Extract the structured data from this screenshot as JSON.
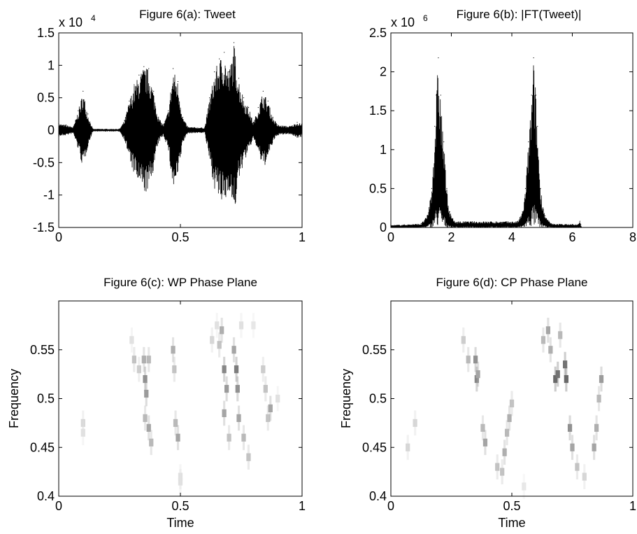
{
  "figure": {
    "background": "#ffffff",
    "ink": "#000000"
  },
  "chart_data": [
    {
      "id": "a",
      "type": "line",
      "title": "Figure 6(a): Tweet",
      "xlabel": "",
      "ylabel": "",
      "xlim": [
        0,
        1
      ],
      "ylim": [
        -1.5,
        1.5
      ],
      "y_multiplier": "x 10",
      "y_exponent": "4",
      "xticks": [
        "0",
        "0.5",
        "1"
      ],
      "yticks": [
        "1.5",
        "1",
        "0.5",
        "0",
        "-0.5",
        "-1",
        "-1.5"
      ],
      "grid": false,
      "envelope": [
        {
          "x": 0.0,
          "y": 0.1
        },
        {
          "x": 0.03,
          "y": 0.08
        },
        {
          "x": 0.06,
          "y": 0.05
        },
        {
          "x": 0.08,
          "y": 0.3
        },
        {
          "x": 0.1,
          "y": 0.6
        },
        {
          "x": 0.12,
          "y": 0.25
        },
        {
          "x": 0.14,
          "y": 0.02
        },
        {
          "x": 0.25,
          "y": 0.02
        },
        {
          "x": 0.27,
          "y": 0.15
        },
        {
          "x": 0.29,
          "y": 0.45
        },
        {
          "x": 0.31,
          "y": 0.7
        },
        {
          "x": 0.33,
          "y": 0.85
        },
        {
          "x": 0.35,
          "y": 0.98
        },
        {
          "x": 0.37,
          "y": 0.95
        },
        {
          "x": 0.39,
          "y": 0.6
        },
        {
          "x": 0.41,
          "y": 0.2
        },
        {
          "x": 0.43,
          "y": 0.08
        },
        {
          "x": 0.45,
          "y": 0.3
        },
        {
          "x": 0.47,
          "y": 0.95
        },
        {
          "x": 0.49,
          "y": 0.75
        },
        {
          "x": 0.51,
          "y": 0.2
        },
        {
          "x": 0.53,
          "y": 0.05
        },
        {
          "x": 0.6,
          "y": 0.04
        },
        {
          "x": 0.62,
          "y": 0.5
        },
        {
          "x": 0.64,
          "y": 0.9
        },
        {
          "x": 0.66,
          "y": 1.1
        },
        {
          "x": 0.68,
          "y": 1.2
        },
        {
          "x": 0.7,
          "y": 0.9
        },
        {
          "x": 0.72,
          "y": 1.35
        },
        {
          "x": 0.74,
          "y": 0.8
        },
        {
          "x": 0.76,
          "y": 0.5
        },
        {
          "x": 0.78,
          "y": 0.35
        },
        {
          "x": 0.8,
          "y": 0.12
        },
        {
          "x": 0.82,
          "y": 0.35
        },
        {
          "x": 0.84,
          "y": 0.6
        },
        {
          "x": 0.86,
          "y": 0.45
        },
        {
          "x": 0.88,
          "y": 0.2
        },
        {
          "x": 0.9,
          "y": 0.08
        },
        {
          "x": 0.95,
          "y": 0.06
        },
        {
          "x": 0.98,
          "y": 0.12
        },
        {
          "x": 1.0,
          "y": 0.1
        }
      ]
    },
    {
      "id": "b",
      "type": "line",
      "title": "Figure 6(b): |FT(Tweet)|",
      "xlabel": "",
      "ylabel": "",
      "xlim": [
        0,
        8
      ],
      "ylim": [
        0,
        2.5
      ],
      "y_multiplier": "x 10",
      "y_exponent": "6",
      "xticks": [
        "0",
        "2",
        "4",
        "6",
        "8"
      ],
      "yticks": [
        "2.5",
        "2",
        "1.5",
        "1",
        "0.5",
        "0"
      ],
      "grid": false,
      "envelope": [
        {
          "x": 0.0,
          "y": 0.03
        },
        {
          "x": 1.0,
          "y": 0.05
        },
        {
          "x": 1.2,
          "y": 0.15
        },
        {
          "x": 1.35,
          "y": 0.5
        },
        {
          "x": 1.45,
          "y": 1.3
        },
        {
          "x": 1.5,
          "y": 1.7
        },
        {
          "x": 1.57,
          "y": 2.18
        },
        {
          "x": 1.65,
          "y": 1.7
        },
        {
          "x": 1.75,
          "y": 1.1
        },
        {
          "x": 1.85,
          "y": 0.5
        },
        {
          "x": 1.95,
          "y": 0.2
        },
        {
          "x": 2.1,
          "y": 0.08
        },
        {
          "x": 4.2,
          "y": 0.08
        },
        {
          "x": 4.35,
          "y": 0.2
        },
        {
          "x": 4.45,
          "y": 0.5
        },
        {
          "x": 4.55,
          "y": 1.1
        },
        {
          "x": 4.65,
          "y": 1.7
        },
        {
          "x": 4.72,
          "y": 2.18
        },
        {
          "x": 4.8,
          "y": 1.7
        },
        {
          "x": 4.85,
          "y": 1.3
        },
        {
          "x": 4.95,
          "y": 0.5
        },
        {
          "x": 5.1,
          "y": 0.15
        },
        {
          "x": 5.3,
          "y": 0.05
        },
        {
          "x": 6.2,
          "y": 0.04
        },
        {
          "x": 6.25,
          "y": 0.08
        },
        {
          "x": 6.28,
          "y": 0.04
        },
        {
          "x": 6.3,
          "y": 0.0
        }
      ]
    },
    {
      "id": "c",
      "type": "heatmap",
      "title": "Figure 6(c): WP Phase Plane",
      "xlabel": "Time",
      "ylabel": "Frequency",
      "xlim": [
        0,
        1
      ],
      "ylim": [
        0.4,
        0.6
      ],
      "xticks": [
        "0",
        "0.5",
        "1"
      ],
      "yticks": [
        "0.55",
        "0.5",
        "0.45",
        "0.4"
      ],
      "grid": false,
      "cells": [
        {
          "t": 0.1,
          "f": 0.475,
          "v": 0.2
        },
        {
          "t": 0.1,
          "f": 0.465,
          "v": 0.15
        },
        {
          "t": 0.3,
          "f": 0.56,
          "v": 0.15
        },
        {
          "t": 0.31,
          "f": 0.54,
          "v": 0.3
        },
        {
          "t": 0.33,
          "f": 0.53,
          "v": 0.25
        },
        {
          "t": 0.35,
          "f": 0.54,
          "v": 0.4
        },
        {
          "t": 0.355,
          "f": 0.52,
          "v": 0.55
        },
        {
          "t": 0.36,
          "f": 0.505,
          "v": 0.5
        },
        {
          "t": 0.37,
          "f": 0.54,
          "v": 0.35
        },
        {
          "t": 0.355,
          "f": 0.48,
          "v": 0.35
        },
        {
          "t": 0.37,
          "f": 0.47,
          "v": 0.45
        },
        {
          "t": 0.38,
          "f": 0.455,
          "v": 0.35
        },
        {
          "t": 0.47,
          "f": 0.55,
          "v": 0.4
        },
        {
          "t": 0.475,
          "f": 0.53,
          "v": 0.3
        },
        {
          "t": 0.48,
          "f": 0.475,
          "v": 0.35
        },
        {
          "t": 0.49,
          "f": 0.46,
          "v": 0.45
        },
        {
          "t": 0.5,
          "f": 0.42,
          "v": 0.15
        },
        {
          "t": 0.5,
          "f": 0.415,
          "v": 0.15
        },
        {
          "t": 0.63,
          "f": 0.56,
          "v": 0.2
        },
        {
          "t": 0.66,
          "f": 0.555,
          "v": 0.3
        },
        {
          "t": 0.67,
          "f": 0.57,
          "v": 0.4
        },
        {
          "t": 0.68,
          "f": 0.53,
          "v": 0.6
        },
        {
          "t": 0.69,
          "f": 0.51,
          "v": 0.5
        },
        {
          "t": 0.68,
          "f": 0.485,
          "v": 0.45
        },
        {
          "t": 0.7,
          "f": 0.46,
          "v": 0.3
        },
        {
          "t": 0.72,
          "f": 0.55,
          "v": 0.45
        },
        {
          "t": 0.73,
          "f": 0.53,
          "v": 0.65
        },
        {
          "t": 0.735,
          "f": 0.51,
          "v": 0.55
        },
        {
          "t": 0.74,
          "f": 0.48,
          "v": 0.45
        },
        {
          "t": 0.76,
          "f": 0.46,
          "v": 0.35
        },
        {
          "t": 0.78,
          "f": 0.44,
          "v": 0.3
        },
        {
          "t": 0.85,
          "f": 0.51,
          "v": 0.3
        },
        {
          "t": 0.86,
          "f": 0.48,
          "v": 0.3
        },
        {
          "t": 0.87,
          "f": 0.49,
          "v": 0.45
        },
        {
          "t": 0.84,
          "f": 0.53,
          "v": 0.25
        },
        {
          "t": 0.9,
          "f": 0.5,
          "v": 0.15
        },
        {
          "t": 0.65,
          "f": 0.575,
          "v": 0.15
        },
        {
          "t": 0.75,
          "f": 0.575,
          "v": 0.15
        },
        {
          "t": 0.8,
          "f": 0.575,
          "v": 0.12
        }
      ]
    },
    {
      "id": "d",
      "type": "heatmap",
      "title": "Figure 6(d): CP Phase Plane",
      "xlabel": "Time",
      "ylabel": "Frequency",
      "xlim": [
        0,
        1
      ],
      "ylim": [
        0.4,
        0.6
      ],
      "xticks": [
        "0",
        "0.5",
        "1"
      ],
      "yticks": [
        "0.55",
        "0.5",
        "0.45",
        "0.4"
      ],
      "grid": false,
      "cells": [
        {
          "t": 0.07,
          "f": 0.45,
          "v": 0.2
        },
        {
          "t": 0.1,
          "f": 0.475,
          "v": 0.2
        },
        {
          "t": 0.3,
          "f": 0.56,
          "v": 0.25
        },
        {
          "t": 0.32,
          "f": 0.54,
          "v": 0.35
        },
        {
          "t": 0.35,
          "f": 0.54,
          "v": 0.55
        },
        {
          "t": 0.355,
          "f": 0.52,
          "v": 0.6
        },
        {
          "t": 0.36,
          "f": 0.525,
          "v": 0.45
        },
        {
          "t": 0.38,
          "f": 0.47,
          "v": 0.35
        },
        {
          "t": 0.39,
          "f": 0.455,
          "v": 0.45
        },
        {
          "t": 0.44,
          "f": 0.43,
          "v": 0.3
        },
        {
          "t": 0.46,
          "f": 0.425,
          "v": 0.3
        },
        {
          "t": 0.47,
          "f": 0.445,
          "v": 0.4
        },
        {
          "t": 0.48,
          "f": 0.465,
          "v": 0.35
        },
        {
          "t": 0.49,
          "f": 0.48,
          "v": 0.4
        },
        {
          "t": 0.5,
          "f": 0.495,
          "v": 0.3
        },
        {
          "t": 0.63,
          "f": 0.56,
          "v": 0.35
        },
        {
          "t": 0.65,
          "f": 0.57,
          "v": 0.45
        },
        {
          "t": 0.66,
          "f": 0.55,
          "v": 0.4
        },
        {
          "t": 0.68,
          "f": 0.52,
          "v": 0.75
        },
        {
          "t": 0.69,
          "f": 0.525,
          "v": 0.7
        },
        {
          "t": 0.7,
          "f": 0.565,
          "v": 0.35
        },
        {
          "t": 0.72,
          "f": 0.535,
          "v": 0.7
        },
        {
          "t": 0.725,
          "f": 0.52,
          "v": 0.75
        },
        {
          "t": 0.74,
          "f": 0.47,
          "v": 0.55
        },
        {
          "t": 0.75,
          "f": 0.45,
          "v": 0.45
        },
        {
          "t": 0.77,
          "f": 0.43,
          "v": 0.3
        },
        {
          "t": 0.8,
          "f": 0.42,
          "v": 0.2
        },
        {
          "t": 0.84,
          "f": 0.45,
          "v": 0.45
        },
        {
          "t": 0.85,
          "f": 0.47,
          "v": 0.4
        },
        {
          "t": 0.86,
          "f": 0.5,
          "v": 0.35
        },
        {
          "t": 0.87,
          "f": 0.52,
          "v": 0.5
        },
        {
          "t": 0.55,
          "f": 0.41,
          "v": 0.12
        }
      ]
    }
  ]
}
